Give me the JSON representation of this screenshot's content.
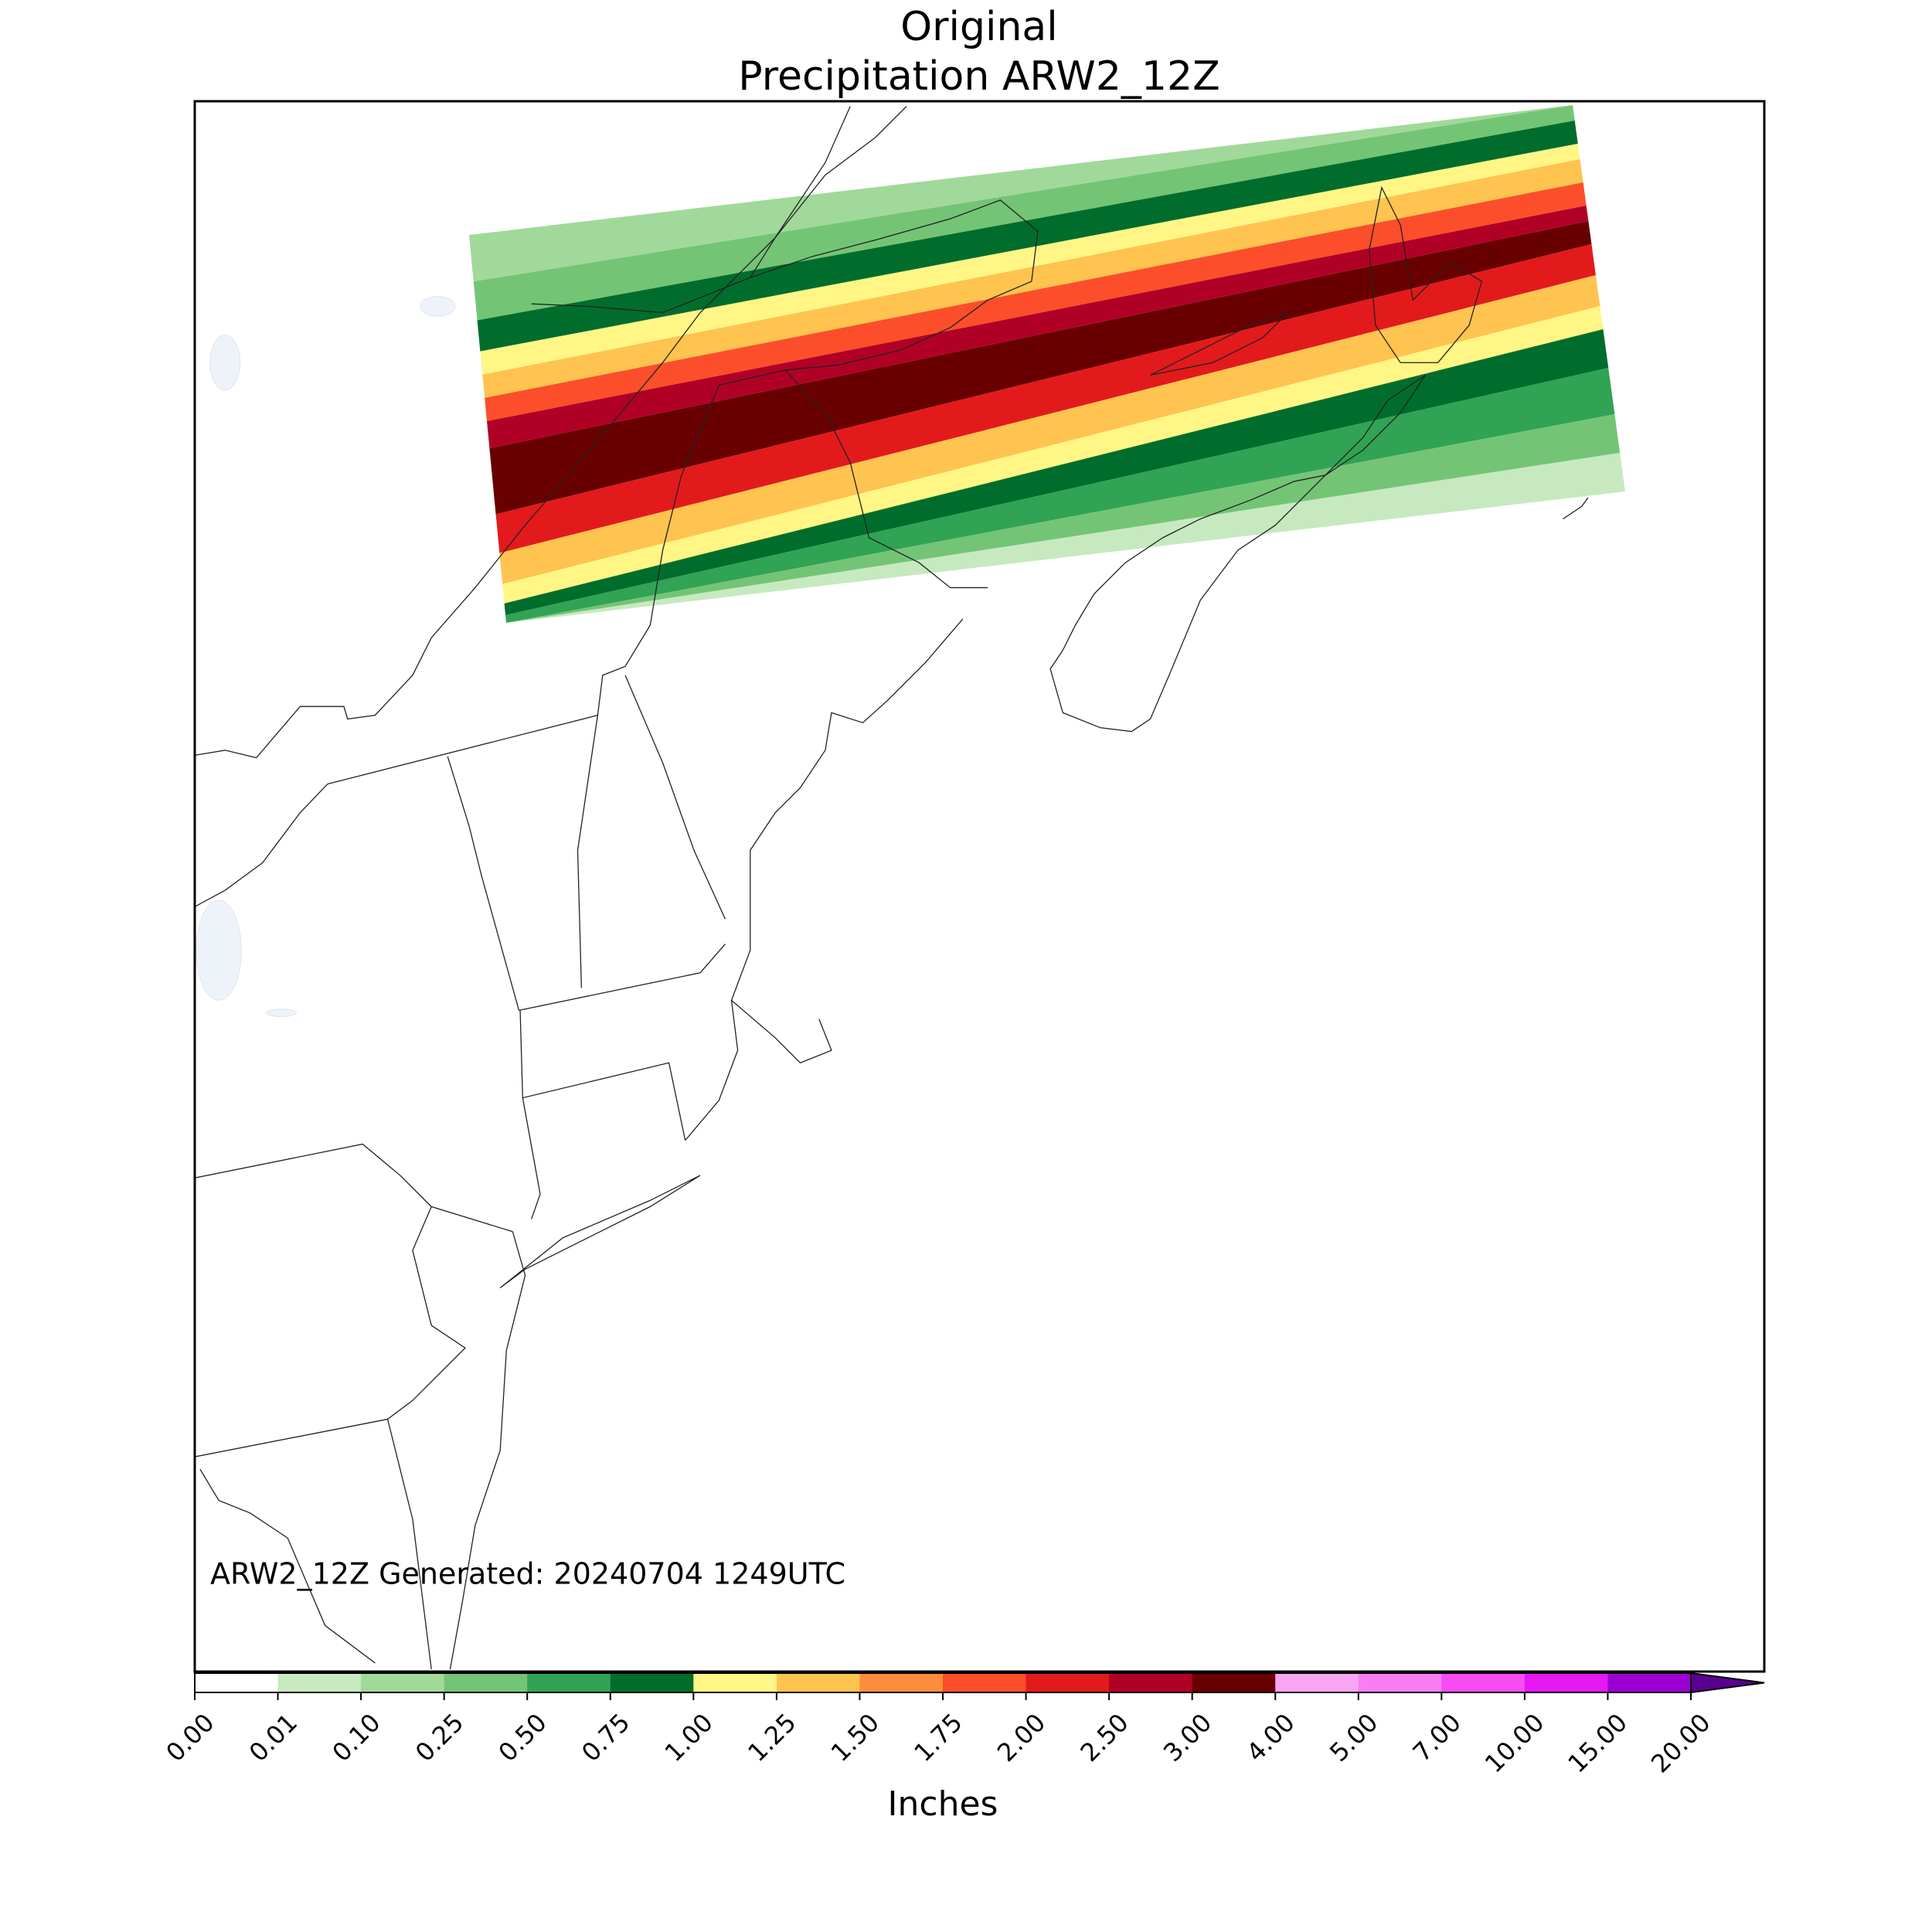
{
  "title": [
    "Original",
    "Precipitation ARW2_12Z"
  ],
  "annotation": "ARW2_12Z Generated: 20240704 1249UTC",
  "colorbar": {
    "label": "Inches",
    "ticks": [
      {
        "value": 0,
        "label": "0.00"
      },
      {
        "value": 0.01,
        "label": "0.01"
      },
      {
        "value": 0.1,
        "label": "0.10"
      },
      {
        "value": 0.25,
        "label": "0.25"
      },
      {
        "value": 0.5,
        "label": "0.50"
      },
      {
        "value": 0.75,
        "label": "0.75"
      },
      {
        "value": 1,
        "label": "1.00"
      },
      {
        "value": 1.25,
        "label": "1.25"
      },
      {
        "value": 1.5,
        "label": "1.50"
      },
      {
        "value": 1.75,
        "label": "1.75"
      },
      {
        "value": 2,
        "label": "2.00"
      },
      {
        "value": 2.5,
        "label": "2.50"
      },
      {
        "value": 3,
        "label": "3.00"
      },
      {
        "value": 4,
        "label": "4.00"
      },
      {
        "value": 5,
        "label": "5.00"
      },
      {
        "value": 7,
        "label": "7.00"
      },
      {
        "value": 10,
        "label": "10.00"
      },
      {
        "value": 15,
        "label": "15.00"
      },
      {
        "value": 20,
        "label": "20.00"
      }
    ],
    "colors": [
      "#ffffff",
      "#c7e9c0",
      "#a1d99b",
      "#74c476",
      "#31a354",
      "#006d2c",
      "#fff685",
      "#fec44f",
      "#fd8d3c",
      "#fc4e2a",
      "#e31a1c",
      "#b10026",
      "#680000",
      "#f8a5f3",
      "#f77ff3",
      "#f64cf2",
      "#e517f2",
      "#9b00d0"
    ],
    "over_color": "#5a0090",
    "extend": "max"
  }
}
